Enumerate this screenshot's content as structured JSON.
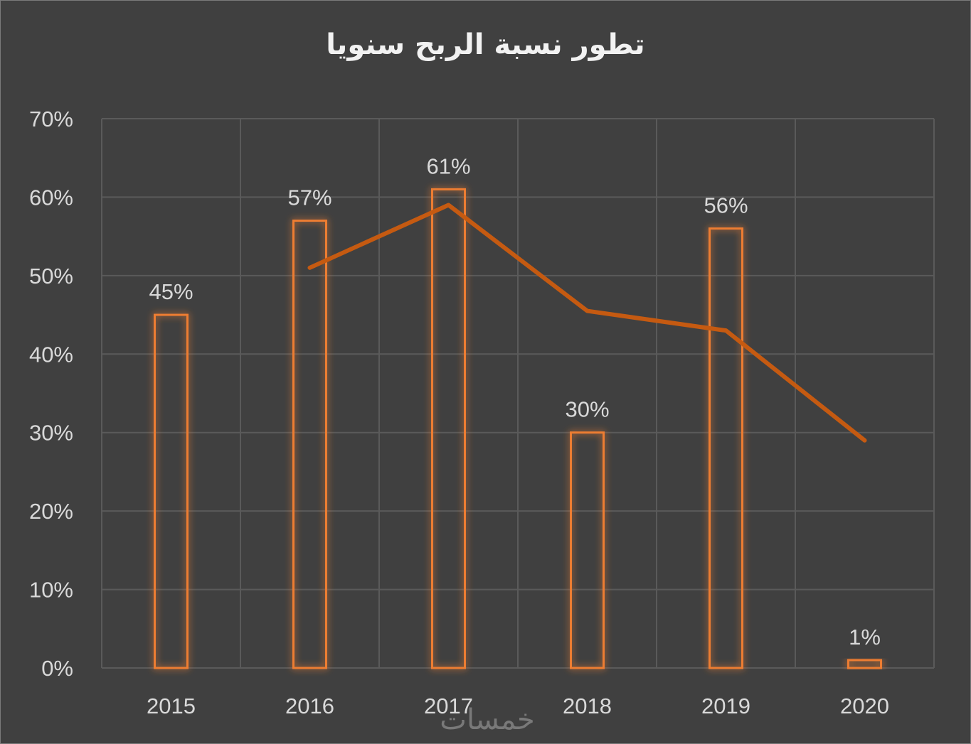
{
  "chart_data": {
    "type": "bar",
    "title": "تطور نسبة الربح سنويا",
    "categories": [
      "2015",
      "2016",
      "2017",
      "2018",
      "2019",
      "2020"
    ],
    "series": [
      {
        "type": "bar",
        "values": [
          45,
          57,
          61,
          30,
          56,
          1
        ],
        "data_labels": [
          "45%",
          "57%",
          "61%",
          "30%",
          "56%",
          "1%"
        ],
        "color": "#ED7D31"
      },
      {
        "type": "line",
        "values": [
          null,
          51,
          59,
          45.5,
          43,
          29
        ],
        "color": "#C55A11"
      }
    ],
    "ylim": [
      0,
      70
    ],
    "yticks": [
      0,
      10,
      20,
      30,
      40,
      50,
      60,
      70
    ],
    "ytick_labels": [
      "0%",
      "10%",
      "20%",
      "30%",
      "40%",
      "50%",
      "60%",
      "70%"
    ],
    "grid": true,
    "background": "#404040",
    "gridline_color": "#5a5a5a",
    "text_color": "#d9d9d9"
  },
  "watermark": "خمسات"
}
